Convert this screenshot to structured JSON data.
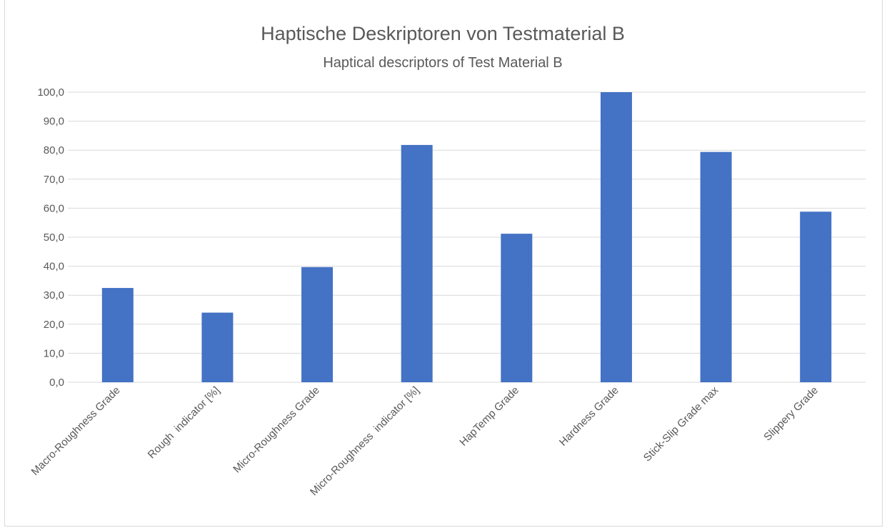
{
  "chart_data": {
    "type": "bar",
    "title": "Haptische Deskriptoren von Testmaterial B",
    "subtitle": "Haptical descriptors of Test Material B",
    "categories": [
      "Macro-Roughness Grade",
      "Rough  indicator [%]",
      "Micro-Roughness Grade",
      "Micro-Roughness  indicator [%]",
      "HapTemp Grade",
      "Hardness Grade",
      "Stick-Slip Grade max",
      "Slippery Grade"
    ],
    "values": [
      32.5,
      24.0,
      39.7,
      81.8,
      51.2,
      100.0,
      79.4,
      58.8
    ],
    "ylim": [
      0,
      100
    ],
    "yticks": [
      "0,0",
      "10,0",
      "20,0",
      "30,0",
      "40,0",
      "50,0",
      "60,0",
      "70,0",
      "80,0",
      "90,0",
      "100,0"
    ],
    "grid": true,
    "bar_color": "#4472C4",
    "grid_color": "#d9d9d9"
  }
}
